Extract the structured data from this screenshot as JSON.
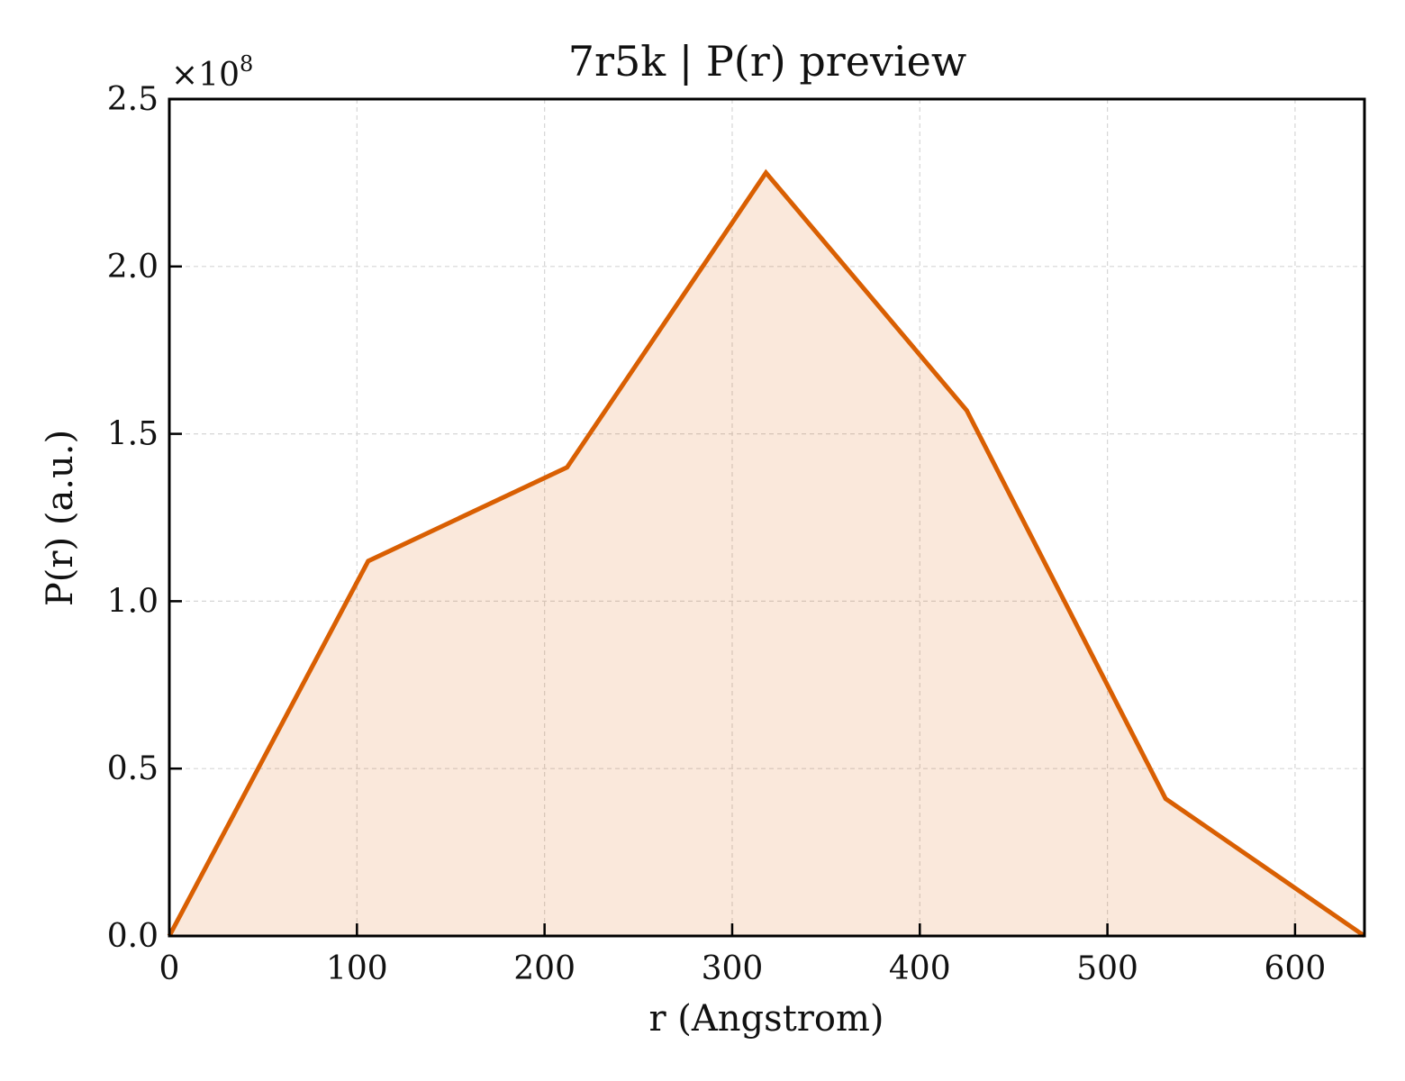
{
  "chart_data": {
    "type": "area",
    "title": "7r5k | P(r) preview",
    "xlabel": "r (Angstrom)",
    "ylabel": "P(r) (a.u.)",
    "y_offset_text": "×10",
    "y_offset_exponent": "8",
    "xlim": [
      0,
      637
    ],
    "ylim": [
      0,
      2.5
    ],
    "xticks": [
      0,
      100,
      200,
      300,
      400,
      500,
      600
    ],
    "xtick_labels": [
      "0",
      "100",
      "200",
      "300",
      "400",
      "500",
      "600"
    ],
    "yticks": [
      0,
      0.5,
      1.0,
      1.5,
      2.0,
      2.5
    ],
    "ytick_labels": [
      "0.0",
      "0.5",
      "1.0",
      "1.5",
      "2.0",
      "2.5"
    ],
    "grid": true,
    "series": [
      {
        "x": [
          0,
          106,
          212,
          318,
          425,
          531,
          637
        ],
        "y": [
          0.0,
          1.12,
          1.4,
          2.28,
          1.57,
          0.41,
          0.0
        ],
        "color": "#d95f02",
        "fill_color": "#d95f02",
        "fill_opacity": 0.14
      }
    ]
  }
}
